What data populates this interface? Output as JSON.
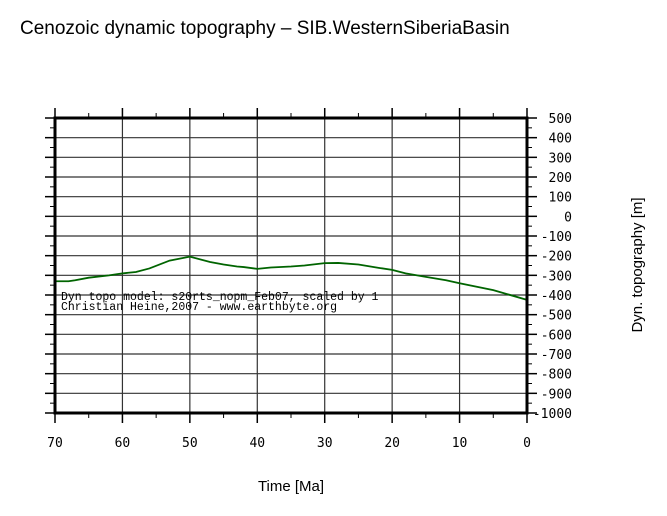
{
  "chart_data": {
    "type": "line",
    "title": "Cenozoic dynamic topography – SIB.WesternSiberiaBasin",
    "xlabel": "Time [Ma]",
    "ylabel": "Dyn. topography [m]",
    "xlim": [
      70,
      0
    ],
    "ylim": [
      -1000,
      500
    ],
    "x_reversed": true,
    "grid": true,
    "x_ticks": [
      70,
      60,
      50,
      40,
      30,
      20,
      10,
      0
    ],
    "y_ticks": [
      500,
      400,
      300,
      200,
      100,
      0,
      -100,
      -200,
      -300,
      -400,
      -500,
      -600,
      -700,
      -800,
      -900,
      -1000
    ],
    "series": [
      {
        "color": "#006400",
        "x": [
          70,
          68,
          67,
          65,
          62,
          60,
          58,
          56,
          53,
          50,
          47,
          45,
          43,
          42,
          40,
          38,
          35,
          33,
          30,
          28,
          25,
          22,
          20,
          18,
          15,
          12,
          10,
          5,
          0
        ],
        "y": [
          -330,
          -330,
          -325,
          -312,
          -300,
          -290,
          -283,
          -265,
          -225,
          -205,
          -232,
          -245,
          -255,
          -258,
          -267,
          -260,
          -255,
          -250,
          -238,
          -237,
          -245,
          -262,
          -272,
          -290,
          -308,
          -325,
          -340,
          -375,
          -425
        ]
      }
    ],
    "annotations": [
      "Dyn topo model: s20rts_nopm_Feb07, scaled by 1",
      "Christian Heine,2007 - www.earthbyte.org"
    ]
  }
}
